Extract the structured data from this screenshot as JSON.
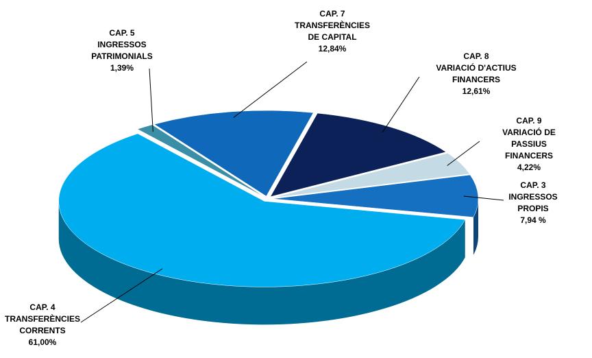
{
  "chart_data": {
    "type": "pie3d",
    "categories": [
      "CAP. 5\nINGRESSOS\nPATRIMONIALS",
      "CAP. 7\nTRANSFERÈNCIES\nDE CAPITAL",
      "CAP. 8\nVARIACIÓ D'ACTIUS\nFINANCERS",
      "CAP. 9 VARIACIÓ DE\nPASSIUS FINANCERS",
      "CAP. 3\nINGRESSOS\nPROPIS",
      "CAP. 4\nTRANSFERÈNCIES\nCORRENTS"
    ],
    "values": [
      1.39,
      12.84,
      12.61,
      4.22,
      7.94,
      61.0
    ],
    "value_labels": [
      "1,39%",
      "12,84%",
      "12,61%",
      "4,22%",
      "7,94 %",
      "61,00%"
    ],
    "colors": [
      "#3a8ea6",
      "#1068bb",
      "#0b2157",
      "#c4dae5",
      "#1570c2",
      "#00aeef"
    ]
  }
}
